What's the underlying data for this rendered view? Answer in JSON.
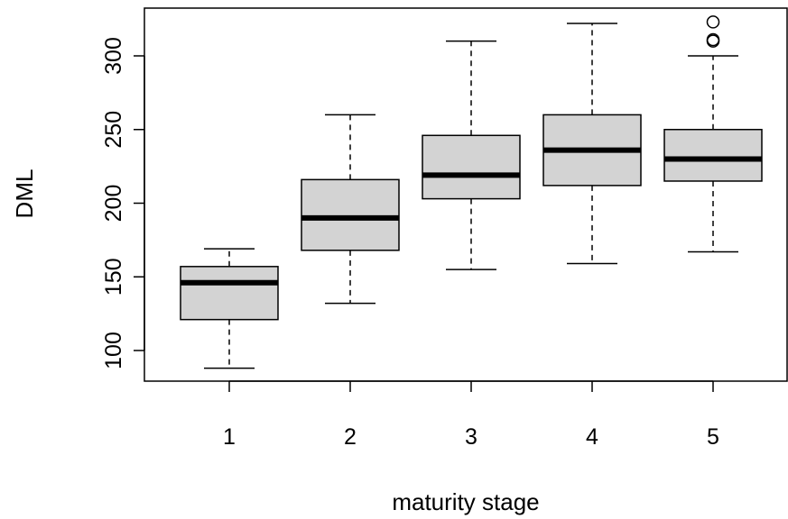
{
  "chart_data": {
    "type": "boxplot",
    "xlabel": "maturity stage",
    "ylabel": "DML",
    "categories": [
      "1",
      "2",
      "3",
      "4",
      "5"
    ],
    "yticks": [
      100,
      150,
      200,
      250,
      300
    ],
    "ylim": [
      80,
      327
    ],
    "grid": false,
    "legend": "none",
    "box_fill": "#d3d3d3",
    "boxes": [
      {
        "category": "1",
        "whisker_low": 88,
        "q1": 121,
        "median": 146,
        "q3": 157,
        "whisker_high": 169,
        "outliers": []
      },
      {
        "category": "2",
        "whisker_low": 132,
        "q1": 168,
        "median": 190,
        "q3": 216,
        "whisker_high": 260,
        "outliers": []
      },
      {
        "category": "3",
        "whisker_low": 155,
        "q1": 203,
        "median": 219,
        "q3": 246,
        "whisker_high": 310,
        "outliers": []
      },
      {
        "category": "4",
        "whisker_low": 159,
        "q1": 212,
        "median": 236,
        "q3": 260,
        "whisker_high": 322,
        "outliers": []
      },
      {
        "category": "5",
        "whisker_low": 167,
        "q1": 215,
        "median": 230,
        "q3": 250,
        "whisker_high": 300,
        "outliers": [
          310,
          311,
          323
        ]
      }
    ]
  }
}
